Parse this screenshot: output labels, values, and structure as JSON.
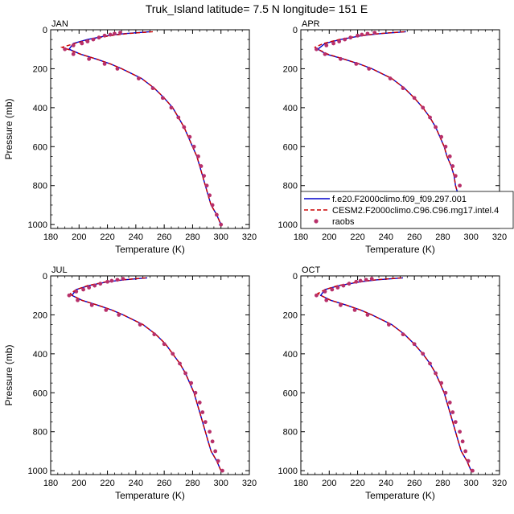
{
  "figure": {
    "title": "Truk_Island  latitude= 7.5 N longitude= 151 E"
  },
  "colors": {
    "model1": "#0000cc",
    "model2": "#cc0000",
    "obs": "#b8306a"
  },
  "legend": {
    "placement": "bottom-right of APR panel",
    "entries": [
      "f.e20.F2000climo.f09_f09.297.001",
      "CESM2.F2000climo.C96.C96.mg17.intel.4",
      "raobs"
    ]
  },
  "chart_data": [
    {
      "type": "line",
      "panel_label": "JAN",
      "xlabel": "Temperature (K)",
      "ylabel": "Pressure (mb)",
      "xlim": [
        180,
        320
      ],
      "ylim": [
        1020,
        0
      ],
      "xticks": [
        "180",
        "200",
        "220",
        "240",
        "260",
        "280",
        "300",
        "320"
      ],
      "yticks": [
        "0",
        "200",
        "400",
        "600",
        "800",
        "1000"
      ],
      "grid": false,
      "series": [
        {
          "name": "f.e20.F2000climo.f09_f09.297.001",
          "style": "solid",
          "p": [
            10,
            20,
            30,
            50,
            70,
            100,
            125,
            150,
            175,
            200,
            250,
            300,
            350,
            400,
            450,
            500,
            550,
            600,
            650,
            700,
            750,
            800,
            850,
            900,
            950,
            1000
          ],
          "t": [
            250,
            232,
            220,
            206,
            196,
            193,
            201,
            212,
            222,
            230,
            244,
            253,
            260,
            266,
            270,
            274,
            277,
            280,
            283,
            285,
            287,
            289,
            291,
            293,
            297,
            300
          ]
        },
        {
          "name": "CESM2.F2000climo.C96.C96.mg17.intel.4",
          "style": "dashed",
          "p": [
            10,
            20,
            30,
            50,
            70,
            90,
            100,
            125,
            150,
            175,
            200,
            250,
            300,
            350,
            400,
            450,
            500,
            550,
            600,
            650,
            700,
            750,
            800,
            850,
            900,
            950,
            1000
          ],
          "t": [
            252,
            234,
            222,
            208,
            197,
            188,
            192,
            201,
            212,
            222,
            230,
            244,
            253,
            260,
            266,
            270,
            274,
            277,
            280,
            283,
            285,
            287,
            289,
            291,
            293,
            297,
            300
          ]
        },
        {
          "name": "raobs",
          "style": "markers",
          "p": [
            15,
            20,
            25,
            30,
            40,
            50,
            60,
            70,
            80,
            100,
            125,
            150,
            175,
            200,
            250,
            300,
            350,
            400,
            450,
            500,
            550,
            600,
            650,
            700,
            750,
            800,
            850,
            900,
            950,
            1000
          ],
          "t": [
            229,
            225,
            222,
            218,
            214,
            210,
            206,
            202,
            196,
            190,
            196,
            207,
            218,
            227,
            242,
            252,
            259,
            265,
            270,
            274,
            278,
            281,
            284,
            286,
            288,
            290,
            292,
            294,
            297,
            300
          ]
        }
      ]
    },
    {
      "type": "line",
      "panel_label": "APR",
      "xlabel": "Temperature (K)",
      "ylabel": "",
      "xlim": [
        180,
        320
      ],
      "ylim": [
        1020,
        0
      ],
      "xticks": [
        "180",
        "200",
        "220",
        "240",
        "260",
        "280",
        "300",
        "320"
      ],
      "yticks": [
        "0",
        "200",
        "400",
        "600",
        "800",
        "1000"
      ],
      "grid": false,
      "series": [
        {
          "name": "f.e20.F2000climo.f09_f09.297.001",
          "style": "solid",
          "p": [
            10,
            20,
            30,
            50,
            70,
            100,
            125,
            150,
            175,
            200,
            250,
            300,
            350,
            400,
            450,
            500,
            550,
            600,
            650,
            700,
            750,
            800,
            850,
            900,
            950,
            1000
          ],
          "t": [
            254,
            236,
            223,
            208,
            197,
            192,
            198,
            210,
            221,
            230,
            244,
            253,
            260,
            266,
            271,
            275,
            278,
            281,
            283,
            286,
            288,
            289,
            291,
            293,
            297,
            300
          ]
        },
        {
          "name": "CESM2.F2000climo.C96.C96.mg17.intel.4",
          "style": "dashed",
          "p": [
            10,
            20,
            30,
            50,
            70,
            90,
            100,
            125,
            150,
            175,
            200,
            250,
            300,
            350,
            400,
            450,
            500,
            550,
            600,
            650,
            700,
            750,
            800,
            850,
            900,
            950,
            1000
          ],
          "t": [
            253,
            235,
            222,
            207,
            196,
            190,
            192,
            199,
            210,
            221,
            230,
            244,
            253,
            260,
            266,
            271,
            275,
            278,
            281,
            283,
            286,
            288,
            289,
            291,
            293,
            297,
            300
          ]
        },
        {
          "name": "raobs",
          "style": "markers",
          "p": [
            15,
            20,
            25,
            30,
            40,
            50,
            60,
            70,
            80,
            100,
            125,
            150,
            175,
            200,
            250,
            300,
            350,
            400,
            450,
            500,
            550,
            600,
            650,
            700,
            750,
            800,
            850,
            900,
            950,
            1000
          ],
          "t": [
            232,
            227,
            223,
            220,
            215,
            211,
            207,
            203,
            198,
            191,
            197,
            208,
            219,
            228,
            243,
            252,
            260,
            266,
            271,
            275,
            279,
            282,
            285,
            287,
            289,
            292,
            293,
            295,
            298,
            301
          ]
        }
      ]
    },
    {
      "type": "line",
      "panel_label": "JUL",
      "xlabel": "Temperature (K)",
      "ylabel": "Pressure (mb)",
      "xlim": [
        180,
        320
      ],
      "ylim": [
        1020,
        0
      ],
      "xticks": [
        "180",
        "200",
        "220",
        "240",
        "260",
        "280",
        "300",
        "320"
      ],
      "yticks": [
        "0",
        "200",
        "400",
        "600",
        "800",
        "1000"
      ],
      "grid": false,
      "series": [
        {
          "name": "f.e20.F2000climo.f09_f09.297.001",
          "style": "solid",
          "p": [
            10,
            20,
            30,
            50,
            70,
            100,
            125,
            150,
            175,
            200,
            250,
            300,
            350,
            400,
            450,
            500,
            550,
            600,
            650,
            700,
            750,
            800,
            850,
            900,
            950,
            1000
          ],
          "t": [
            248,
            232,
            220,
            207,
            198,
            195,
            202,
            213,
            223,
            231,
            245,
            254,
            261,
            266,
            271,
            275,
            278,
            281,
            283,
            285,
            287,
            289,
            291,
            293,
            297,
            300
          ]
        },
        {
          "name": "CESM2.F2000climo.C96.C96.mg17.intel.4",
          "style": "dashed",
          "p": [
            10,
            20,
            30,
            50,
            70,
            90,
            100,
            125,
            150,
            175,
            200,
            250,
            300,
            350,
            400,
            450,
            500,
            550,
            600,
            650,
            700,
            750,
            800,
            850,
            900,
            950,
            1000
          ],
          "t": [
            247,
            231,
            219,
            206,
            198,
            194,
            195,
            202,
            213,
            223,
            231,
            245,
            254,
            261,
            266,
            271,
            275,
            278,
            281,
            283,
            285,
            287,
            289,
            291,
            293,
            297,
            300
          ]
        },
        {
          "name": "raobs",
          "style": "markers",
          "p": [
            15,
            20,
            25,
            30,
            40,
            50,
            60,
            70,
            80,
            100,
            125,
            150,
            175,
            200,
            250,
            300,
            350,
            400,
            450,
            500,
            550,
            600,
            650,
            700,
            750,
            800,
            850,
            900,
            950,
            1000
          ],
          "t": [
            231,
            227,
            223,
            220,
            215,
            211,
            207,
            203,
            198,
            193,
            199,
            209,
            219,
            228,
            243,
            253,
            260,
            266,
            271,
            275,
            279,
            282,
            285,
            287,
            289,
            292,
            294,
            296,
            298,
            301
          ]
        }
      ]
    },
    {
      "type": "line",
      "panel_label": "OCT",
      "xlabel": "Temperature (K)",
      "ylabel": "",
      "xlim": [
        180,
        320
      ],
      "ylim": [
        1020,
        0
      ],
      "xticks": [
        "180",
        "200",
        "220",
        "240",
        "260",
        "280",
        "300",
        "320"
      ],
      "yticks": [
        "0",
        "200",
        "400",
        "600",
        "800",
        "1000"
      ],
      "grid": false,
      "series": [
        {
          "name": "f.e20.F2000climo.f09_f09.297.001",
          "style": "solid",
          "p": [
            10,
            20,
            30,
            50,
            70,
            100,
            125,
            150,
            175,
            200,
            250,
            300,
            350,
            400,
            450,
            500,
            550,
            600,
            650,
            700,
            750,
            800,
            850,
            900,
            950,
            1000
          ],
          "t": [
            252,
            234,
            222,
            207,
            197,
            194,
            201,
            212,
            222,
            230,
            244,
            253,
            260,
            266,
            271,
            275,
            278,
            281,
            283,
            285,
            287,
            289,
            291,
            293,
            297,
            300
          ]
        },
        {
          "name": "CESM2.F2000climo.C96.C96.mg17.intel.4",
          "style": "dashed",
          "p": [
            10,
            20,
            30,
            50,
            70,
            90,
            100,
            125,
            150,
            175,
            200,
            250,
            300,
            350,
            400,
            450,
            500,
            550,
            600,
            650,
            700,
            750,
            800,
            850,
            900,
            950,
            1000
          ],
          "t": [
            251,
            233,
            221,
            206,
            197,
            192,
            194,
            201,
            212,
            222,
            230,
            244,
            253,
            260,
            266,
            271,
            275,
            278,
            281,
            283,
            285,
            287,
            289,
            291,
            293,
            297,
            300
          ]
        },
        {
          "name": "raobs",
          "style": "markers",
          "p": [
            15,
            20,
            25,
            30,
            40,
            50,
            60,
            70,
            80,
            100,
            125,
            150,
            175,
            200,
            250,
            300,
            350,
            400,
            450,
            500,
            550,
            600,
            650,
            700,
            750,
            800,
            850,
            900,
            950,
            1000
          ],
          "t": [
            230,
            226,
            222,
            219,
            214,
            210,
            206,
            202,
            197,
            191,
            198,
            208,
            218,
            227,
            242,
            252,
            260,
            266,
            271,
            275,
            279,
            282,
            285,
            287,
            289,
            292,
            294,
            296,
            298,
            301
          ]
        }
      ]
    }
  ]
}
